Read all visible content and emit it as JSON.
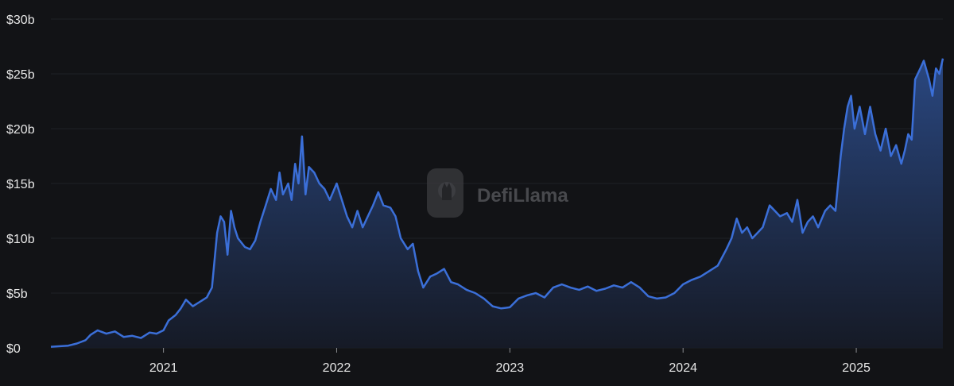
{
  "chart_data": {
    "type": "area",
    "x_unit": "year (decimal)",
    "y_unit": "USD billions",
    "ylim": [
      0,
      30
    ],
    "xlim": [
      2020.35,
      2025.5
    ],
    "y_ticks": [
      0,
      5,
      10,
      15,
      20,
      25,
      30
    ],
    "y_tick_labels": [
      "$0",
      "$5b",
      "$10b",
      "$15b",
      "$20b",
      "$25b",
      "$30b"
    ],
    "x_ticks": [
      2021,
      2022,
      2023,
      2024,
      2025
    ],
    "x_tick_labels": [
      "2021",
      "2022",
      "2023",
      "2024",
      "2025"
    ],
    "grid": "horizontal",
    "line_color": "#3b6fd8",
    "fill_color": "#24406f",
    "background": "#121316",
    "watermark": {
      "text": "DefiLlama",
      "icon": "llama-logo-icon"
    },
    "series": [
      {
        "points": [
          [
            2020.35,
            0.1
          ],
          [
            2020.45,
            0.2
          ],
          [
            2020.5,
            0.4
          ],
          [
            2020.55,
            0.7
          ],
          [
            2020.58,
            1.2
          ],
          [
            2020.62,
            1.6
          ],
          [
            2020.67,
            1.3
          ],
          [
            2020.72,
            1.5
          ],
          [
            2020.77,
            1.0
          ],
          [
            2020.82,
            1.1
          ],
          [
            2020.87,
            0.9
          ],
          [
            2020.92,
            1.4
          ],
          [
            2020.96,
            1.3
          ],
          [
            2021.0,
            1.6
          ],
          [
            2021.03,
            2.5
          ],
          [
            2021.07,
            3.0
          ],
          [
            2021.1,
            3.6
          ],
          [
            2021.13,
            4.4
          ],
          [
            2021.17,
            3.8
          ],
          [
            2021.21,
            4.2
          ],
          [
            2021.25,
            4.6
          ],
          [
            2021.28,
            5.5
          ],
          [
            2021.31,
            10.5
          ],
          [
            2021.33,
            12.0
          ],
          [
            2021.35,
            11.5
          ],
          [
            2021.37,
            8.5
          ],
          [
            2021.39,
            12.5
          ],
          [
            2021.41,
            11.0
          ],
          [
            2021.43,
            10.0
          ],
          [
            2021.47,
            9.2
          ],
          [
            2021.5,
            9.0
          ],
          [
            2021.53,
            9.8
          ],
          [
            2021.56,
            11.5
          ],
          [
            2021.59,
            13.0
          ],
          [
            2021.62,
            14.5
          ],
          [
            2021.65,
            13.5
          ],
          [
            2021.67,
            16.0
          ],
          [
            2021.69,
            14.0
          ],
          [
            2021.72,
            15.0
          ],
          [
            2021.74,
            13.5
          ],
          [
            2021.76,
            16.8
          ],
          [
            2021.78,
            15.0
          ],
          [
            2021.8,
            19.3
          ],
          [
            2021.82,
            14.0
          ],
          [
            2021.84,
            16.5
          ],
          [
            2021.87,
            16.0
          ],
          [
            2021.9,
            15.0
          ],
          [
            2021.93,
            14.5
          ],
          [
            2021.96,
            13.5
          ],
          [
            2022.0,
            15.0
          ],
          [
            2022.03,
            13.5
          ],
          [
            2022.06,
            12.0
          ],
          [
            2022.09,
            11.0
          ],
          [
            2022.12,
            12.5
          ],
          [
            2022.15,
            11.0
          ],
          [
            2022.18,
            12.0
          ],
          [
            2022.21,
            13.0
          ],
          [
            2022.24,
            14.2
          ],
          [
            2022.27,
            13.0
          ],
          [
            2022.31,
            12.8
          ],
          [
            2022.34,
            12.0
          ],
          [
            2022.37,
            10.0
          ],
          [
            2022.41,
            9.0
          ],
          [
            2022.44,
            9.5
          ],
          [
            2022.47,
            7.0
          ],
          [
            2022.5,
            5.5
          ],
          [
            2022.54,
            6.5
          ],
          [
            2022.58,
            6.8
          ],
          [
            2022.62,
            7.2
          ],
          [
            2022.66,
            6.0
          ],
          [
            2022.7,
            5.8
          ],
          [
            2022.75,
            5.3
          ],
          [
            2022.8,
            5.0
          ],
          [
            2022.85,
            4.5
          ],
          [
            2022.9,
            3.8
          ],
          [
            2022.95,
            3.6
          ],
          [
            2023.0,
            3.7
          ],
          [
            2023.05,
            4.5
          ],
          [
            2023.1,
            4.8
          ],
          [
            2023.15,
            5.0
          ],
          [
            2023.2,
            4.6
          ],
          [
            2023.25,
            5.5
          ],
          [
            2023.3,
            5.8
          ],
          [
            2023.35,
            5.5
          ],
          [
            2023.4,
            5.3
          ],
          [
            2023.45,
            5.6
          ],
          [
            2023.5,
            5.2
          ],
          [
            2023.55,
            5.4
          ],
          [
            2023.6,
            5.7
          ],
          [
            2023.65,
            5.5
          ],
          [
            2023.7,
            6.0
          ],
          [
            2023.75,
            5.5
          ],
          [
            2023.8,
            4.7
          ],
          [
            2023.85,
            4.5
          ],
          [
            2023.9,
            4.6
          ],
          [
            2023.95,
            5.0
          ],
          [
            2024.0,
            5.8
          ],
          [
            2024.05,
            6.2
          ],
          [
            2024.1,
            6.5
          ],
          [
            2024.15,
            7.0
          ],
          [
            2024.2,
            7.5
          ],
          [
            2024.25,
            9.0
          ],
          [
            2024.28,
            10.0
          ],
          [
            2024.31,
            11.8
          ],
          [
            2024.34,
            10.5
          ],
          [
            2024.37,
            11.0
          ],
          [
            2024.4,
            10.0
          ],
          [
            2024.43,
            10.5
          ],
          [
            2024.46,
            11.0
          ],
          [
            2024.5,
            13.0
          ],
          [
            2024.53,
            12.5
          ],
          [
            2024.56,
            12.0
          ],
          [
            2024.6,
            12.3
          ],
          [
            2024.63,
            11.5
          ],
          [
            2024.66,
            13.5
          ],
          [
            2024.69,
            10.5
          ],
          [
            2024.72,
            11.5
          ],
          [
            2024.75,
            12.0
          ],
          [
            2024.78,
            11.0
          ],
          [
            2024.82,
            12.5
          ],
          [
            2024.85,
            13.0
          ],
          [
            2024.88,
            12.5
          ],
          [
            2024.91,
            17.5
          ],
          [
            2024.93,
            20.0
          ],
          [
            2024.95,
            22.0
          ],
          [
            2024.97,
            23.0
          ],
          [
            2024.99,
            20.0
          ],
          [
            2025.02,
            22.0
          ],
          [
            2025.05,
            19.5
          ],
          [
            2025.08,
            22.0
          ],
          [
            2025.11,
            19.5
          ],
          [
            2025.14,
            18.0
          ],
          [
            2025.17,
            20.0
          ],
          [
            2025.2,
            17.5
          ],
          [
            2025.23,
            18.5
          ],
          [
            2025.26,
            16.8
          ],
          [
            2025.28,
            18.0
          ],
          [
            2025.3,
            19.5
          ],
          [
            2025.32,
            19.0
          ],
          [
            2025.34,
            24.5
          ],
          [
            2025.37,
            25.5
          ],
          [
            2025.39,
            26.2
          ],
          [
            2025.42,
            24.5
          ],
          [
            2025.44,
            23.0
          ],
          [
            2025.46,
            25.5
          ],
          [
            2025.48,
            25.0
          ],
          [
            2025.5,
            26.4
          ]
        ]
      }
    ]
  }
}
